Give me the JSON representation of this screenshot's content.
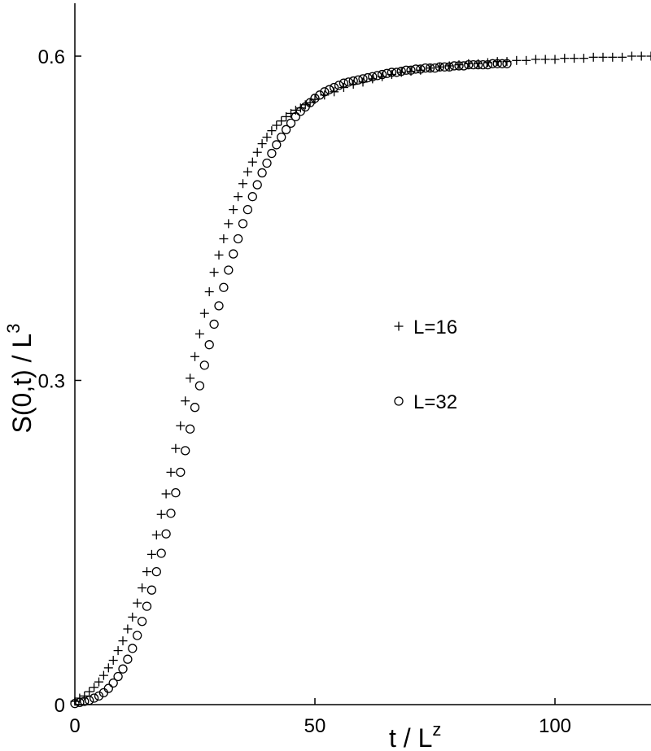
{
  "chart_data": {
    "type": "scatter",
    "title": "",
    "xlabel": "t / L",
    "xlabel_sup": "z",
    "ylabel": "S(0,t) / L",
    "ylabel_sup": "3",
    "xlim": [
      0,
      120
    ],
    "ylim": [
      0,
      0.65
    ],
    "xticks": [
      0,
      50,
      100
    ],
    "xtick_labels": [
      "0",
      "50",
      "100"
    ],
    "yticks": [
      0,
      0.3,
      0.6
    ],
    "ytick_labels": [
      "0",
      "0.3",
      "0.6"
    ],
    "grid": false,
    "legend_placement": "center-right",
    "series": [
      {
        "name": "L=16",
        "marker": "plus",
        "x": [
          0,
          1,
          2,
          3,
          4,
          5,
          6,
          7,
          8,
          9,
          10,
          11,
          12,
          13,
          14,
          15,
          16,
          17,
          18,
          19,
          20,
          21,
          22,
          23,
          24,
          25,
          26,
          27,
          28,
          29,
          30,
          31,
          32,
          33,
          34,
          35,
          36,
          37,
          38,
          39,
          40,
          41,
          42,
          43,
          44,
          45,
          46,
          47,
          48,
          49,
          50,
          52,
          54,
          56,
          58,
          60,
          62,
          64,
          66,
          68,
          70,
          72,
          74,
          76,
          78,
          80,
          82,
          84,
          86,
          88,
          90,
          92,
          94,
          96,
          98,
          100,
          102,
          104,
          106,
          108,
          110,
          112,
          114,
          116,
          118,
          120
        ],
        "values": [
          0.003,
          0.006,
          0.008,
          0.012,
          0.016,
          0.021,
          0.027,
          0.034,
          0.041,
          0.05,
          0.059,
          0.07,
          0.081,
          0.094,
          0.108,
          0.123,
          0.139,
          0.157,
          0.176,
          0.195,
          0.215,
          0.237,
          0.258,
          0.281,
          0.302,
          0.322,
          0.343,
          0.362,
          0.382,
          0.4,
          0.416,
          0.431,
          0.445,
          0.458,
          0.47,
          0.482,
          0.493,
          0.502,
          0.511,
          0.519,
          0.525,
          0.531,
          0.536,
          0.54,
          0.544,
          0.547,
          0.55,
          0.552,
          0.555,
          0.557,
          0.56,
          0.564,
          0.567,
          0.571,
          0.574,
          0.576,
          0.579,
          0.581,
          0.583,
          0.585,
          0.586,
          0.587,
          0.589,
          0.59,
          0.591,
          0.592,
          0.593,
          0.593,
          0.594,
          0.595,
          0.595,
          0.596,
          0.596,
          0.597,
          0.597,
          0.597,
          0.598,
          0.598,
          0.598,
          0.599,
          0.599,
          0.599,
          0.599,
          0.6,
          0.6,
          0.6
        ]
      },
      {
        "name": "L=32",
        "marker": "circle",
        "x": [
          0,
          1,
          2,
          3,
          4,
          5,
          6,
          7,
          8,
          9,
          10,
          11,
          12,
          13,
          14,
          15,
          16,
          17,
          18,
          19,
          20,
          21,
          22,
          23,
          24,
          25,
          26,
          27,
          28,
          29,
          30,
          31,
          32,
          33,
          34,
          35,
          36,
          37,
          38,
          39,
          40,
          41,
          42,
          43,
          44,
          45,
          46,
          47,
          48,
          49,
          50,
          51,
          52,
          53,
          54,
          55,
          56,
          57,
          58,
          59,
          60,
          61,
          62,
          63,
          64,
          65,
          66,
          67,
          68,
          69,
          70,
          71,
          72,
          73,
          74,
          75,
          76,
          77,
          78,
          79,
          80,
          81,
          82,
          83,
          84,
          85,
          86,
          87,
          88,
          89,
          90
        ],
        "values": [
          0.001,
          0.002,
          0.003,
          0.004,
          0.006,
          0.008,
          0.011,
          0.015,
          0.02,
          0.026,
          0.033,
          0.042,
          0.052,
          0.064,
          0.077,
          0.091,
          0.106,
          0.123,
          0.14,
          0.158,
          0.177,
          0.196,
          0.215,
          0.235,
          0.255,
          0.275,
          0.295,
          0.314,
          0.333,
          0.352,
          0.369,
          0.386,
          0.402,
          0.417,
          0.431,
          0.445,
          0.458,
          0.47,
          0.481,
          0.492,
          0.501,
          0.51,
          0.518,
          0.525,
          0.532,
          0.538,
          0.544,
          0.549,
          0.553,
          0.557,
          0.561,
          0.564,
          0.567,
          0.569,
          0.571,
          0.573,
          0.575,
          0.576,
          0.577,
          0.578,
          0.579,
          0.58,
          0.581,
          0.582,
          0.583,
          0.584,
          0.585,
          0.585,
          0.586,
          0.587,
          0.587,
          0.588,
          0.588,
          0.589,
          0.589,
          0.589,
          0.59,
          0.59,
          0.59,
          0.591,
          0.591,
          0.591,
          0.592,
          0.592,
          0.592,
          0.592,
          0.592,
          0.593,
          0.593,
          0.593,
          0.593
        ]
      }
    ]
  },
  "colors": {
    "ink": "#000000",
    "background": "#ffffff"
  }
}
